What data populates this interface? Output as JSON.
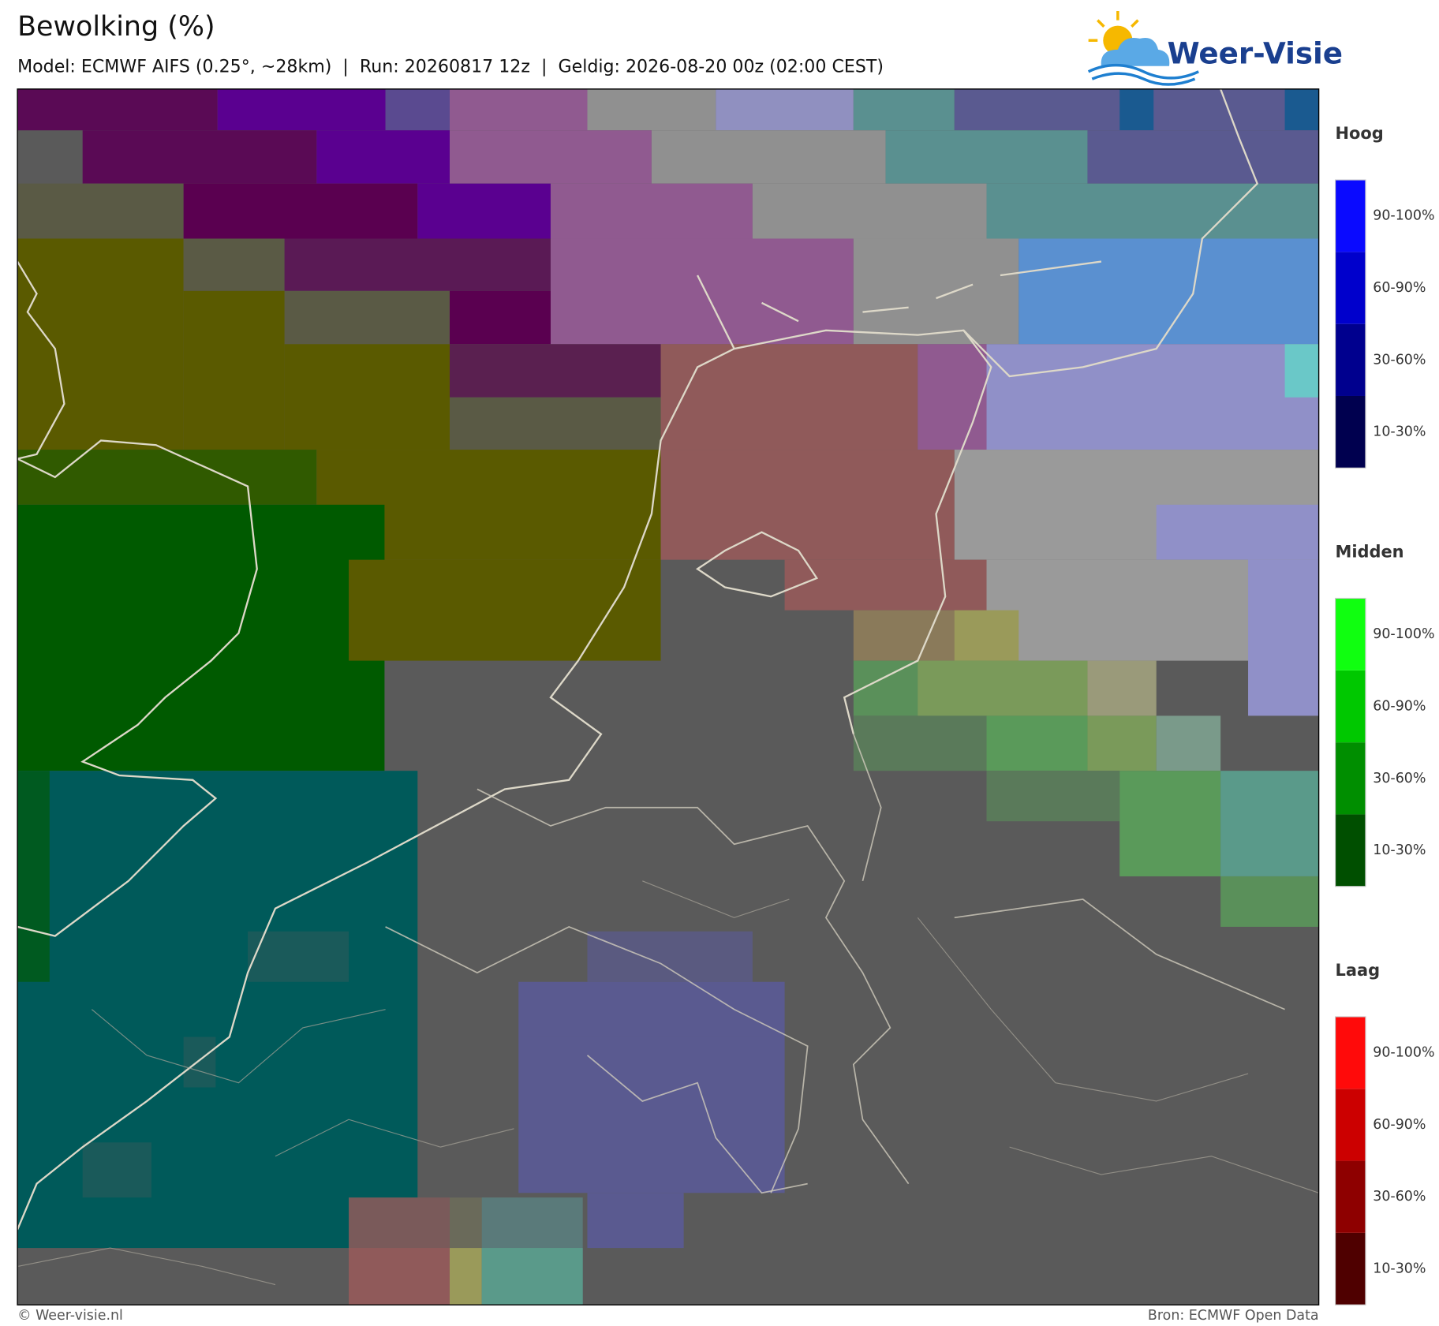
{
  "header": {
    "title": "Bewolking (%)",
    "subtitle": "Model: ECMWF AIFS (0.25°, ~28km)  |  Run: 20260817 12z  |  Geldig: 2026-08-20 00z (02:00 CEST)"
  },
  "logo": {
    "text": "Weer-Visie"
  },
  "legend": [
    {
      "title": "Hoog",
      "labels": [
        "10-30%",
        "30-60%",
        "60-90%",
        "90-100%"
      ],
      "colors": [
        "#00004f",
        "#00008e",
        "#0000cc",
        "#0a0aff"
      ]
    },
    {
      "title": "Midden",
      "labels": [
        "10-30%",
        "30-60%",
        "60-90%",
        "90-100%"
      ],
      "colors": [
        "#004f00",
        "#008e00",
        "#00c800",
        "#10ff10"
      ]
    },
    {
      "title": "Laag",
      "labels": [
        "10-30%",
        "30-60%",
        "60-90%",
        "90-100%"
      ],
      "colors": [
        "#4f0000",
        "#8e0000",
        "#cc0000",
        "#ff0a0a"
      ]
    }
  ],
  "footer": {
    "left": "© Weer-visie.nl",
    "right": "Bron: ECMWF Open Data"
  }
}
